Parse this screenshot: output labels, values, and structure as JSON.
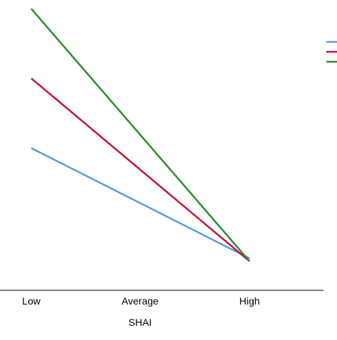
{
  "chart_data": {
    "type": "line",
    "title": "",
    "xlabel": "SHAI",
    "ylabel": "",
    "categories": [
      "Low",
      "Average",
      "High"
    ],
    "ylim": [
      0,
      100
    ],
    "grid": false,
    "legend_placement": "top-right",
    "series": [
      {
        "color": "#5b9bd5",
        "values": [
          49,
          null,
          11
        ]
      },
      {
        "color": "#c0143c",
        "values": [
          73,
          null,
          10
        ]
      },
      {
        "color": "#2e8b2e",
        "values": [
          97,
          null,
          10
        ]
      }
    ]
  }
}
